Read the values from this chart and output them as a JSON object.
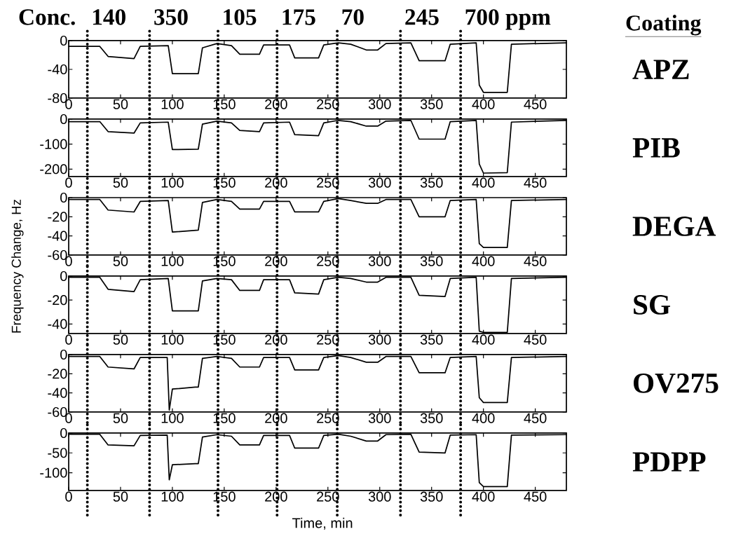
{
  "chart_data": [
    {
      "type": "line",
      "annotations": [
        "Conc.",
        "140",
        "350",
        "105",
        "175",
        "70",
        "245",
        "700 ppm",
        "Coating"
      ],
      "x": [
        0,
        30,
        38,
        63,
        69,
        96,
        100,
        125,
        129,
        143,
        157,
        165,
        184,
        188,
        213,
        218,
        241,
        246,
        260,
        272,
        287,
        298,
        306,
        330,
        338,
        363,
        368,
        393,
        396,
        400,
        423,
        427,
        480
      ],
      "series": [
        {
          "name": "APZ",
          "color": "#000000",
          "values": [
            -8,
            -8,
            -22,
            -25,
            -8,
            -7,
            -46,
            -46,
            -10,
            -4,
            -7,
            -19,
            -19,
            -6,
            -6,
            -24,
            -24,
            -6,
            -3,
            -5,
            -13,
            -13,
            -4,
            -3,
            -28,
            -28,
            -5,
            -3,
            -62,
            -72,
            -72,
            -5,
            -3
          ]
        }
      ],
      "xlim": [
        0,
        480
      ],
      "ylim": [
        -80,
        0
      ],
      "xticks": [
        0,
        50,
        100,
        150,
        200,
        250,
        300,
        350,
        400,
        450
      ],
      "yticks": [
        -80,
        -40,
        0
      ],
      "ref_lines": [
        {
          "axis": "x",
          "value": 18,
          "color": "#000000",
          "line_style": "dotted"
        },
        {
          "axis": "x",
          "value": 78,
          "color": "#000000",
          "line_style": "dotted"
        },
        {
          "axis": "x",
          "value": 144,
          "color": "#000000",
          "line_style": "dotted"
        },
        {
          "axis": "x",
          "value": 201,
          "color": "#000000",
          "line_style": "dotted"
        },
        {
          "axis": "x",
          "value": 259,
          "color": "#000000",
          "line_style": "dotted"
        },
        {
          "axis": "x",
          "value": 320,
          "color": "#000000",
          "line_style": "dotted"
        },
        {
          "axis": "x",
          "value": 378,
          "color": "#000000",
          "line_style": "dotted"
        }
      ]
    },
    {
      "type": "line",
      "x": [
        0,
        30,
        38,
        63,
        69,
        96,
        100,
        125,
        129,
        143,
        157,
        165,
        184,
        188,
        213,
        218,
        241,
        246,
        260,
        272,
        287,
        298,
        306,
        330,
        338,
        363,
        368,
        393,
        396,
        400,
        423,
        427,
        480
      ],
      "series": [
        {
          "name": "PIB",
          "color": "#000000",
          "values": [
            -10,
            -10,
            -50,
            -56,
            -15,
            -12,
            -122,
            -120,
            -20,
            -8,
            -15,
            -45,
            -50,
            -15,
            -12,
            -62,
            -66,
            -15,
            -5,
            -10,
            -28,
            -28,
            -8,
            -5,
            -80,
            -80,
            -10,
            -5,
            -180,
            -216,
            -214,
            -12,
            -5
          ]
        }
      ],
      "xlim": [
        0,
        480
      ],
      "ylim": [
        -230,
        0
      ],
      "xticks": [
        0,
        50,
        100,
        150,
        200,
        250,
        300,
        350,
        400,
        450
      ],
      "yticks": [
        -200,
        -100,
        0
      ],
      "ref_lines": [
        {
          "axis": "x",
          "value": 18,
          "color": "#000000",
          "line_style": "dotted"
        },
        {
          "axis": "x",
          "value": 78,
          "color": "#000000",
          "line_style": "dotted"
        },
        {
          "axis": "x",
          "value": 144,
          "color": "#000000",
          "line_style": "dotted"
        },
        {
          "axis": "x",
          "value": 201,
          "color": "#000000",
          "line_style": "dotted"
        },
        {
          "axis": "x",
          "value": 259,
          "color": "#000000",
          "line_style": "dotted"
        },
        {
          "axis": "x",
          "value": 320,
          "color": "#000000",
          "line_style": "dotted"
        },
        {
          "axis": "x",
          "value": 378,
          "color": "#000000",
          "line_style": "dotted"
        }
      ]
    },
    {
      "type": "line",
      "ylabel": "Frequency Change, Hz",
      "x": [
        0,
        30,
        38,
        63,
        69,
        96,
        100,
        125,
        129,
        143,
        157,
        165,
        184,
        188,
        213,
        218,
        241,
        246,
        260,
        272,
        287,
        298,
        306,
        330,
        338,
        363,
        368,
        393,
        396,
        400,
        423,
        427,
        480
      ],
      "series": [
        {
          "name": "DEGA",
          "color": "#000000",
          "values": [
            -2,
            -2,
            -13,
            -15,
            -4,
            -3,
            -36,
            -34,
            -5,
            -2,
            -4,
            -12,
            -12,
            -4,
            -4,
            -15,
            -15,
            -4,
            -1,
            -3,
            -6,
            -6,
            -2,
            -2,
            -20,
            -20,
            -3,
            -2,
            -48,
            -52,
            -52,
            -3,
            -2
          ]
        }
      ],
      "xlim": [
        0,
        480
      ],
      "ylim": [
        -60,
        0
      ],
      "xticks": [
        0,
        50,
        100,
        150,
        200,
        250,
        300,
        350,
        400,
        450
      ],
      "yticks": [
        -60,
        -40,
        -20,
        0
      ],
      "ref_lines": [
        {
          "axis": "x",
          "value": 18,
          "color": "#000000",
          "line_style": "dotted"
        },
        {
          "axis": "x",
          "value": 78,
          "color": "#000000",
          "line_style": "dotted"
        },
        {
          "axis": "x",
          "value": 144,
          "color": "#000000",
          "line_style": "dotted"
        },
        {
          "axis": "x",
          "value": 201,
          "color": "#000000",
          "line_style": "dotted"
        },
        {
          "axis": "x",
          "value": 259,
          "color": "#000000",
          "line_style": "dotted"
        },
        {
          "axis": "x",
          "value": 320,
          "color": "#000000",
          "line_style": "dotted"
        },
        {
          "axis": "x",
          "value": 378,
          "color": "#000000",
          "line_style": "dotted"
        }
      ]
    },
    {
      "type": "line",
      "x": [
        0,
        30,
        38,
        63,
        69,
        96,
        100,
        125,
        129,
        143,
        157,
        165,
        184,
        188,
        213,
        218,
        241,
        246,
        260,
        272,
        287,
        298,
        306,
        330,
        338,
        363,
        368,
        393,
        396,
        400,
        423,
        427,
        480
      ],
      "series": [
        {
          "name": "SG",
          "color": "#000000",
          "values": [
            -1,
            -1,
            -11,
            -13,
            -3,
            -2,
            -29,
            -29,
            -4,
            -2,
            -3,
            -12,
            -12,
            -3,
            -3,
            -14,
            -15,
            -3,
            -1,
            -2,
            -5,
            -5,
            -1,
            -1,
            -16,
            -17,
            -2,
            -1,
            -46,
            -47,
            -47,
            -2,
            -1
          ]
        }
      ],
      "xlim": [
        0,
        480
      ],
      "ylim": [
        -48,
        0
      ],
      "xticks": [
        0,
        50,
        100,
        150,
        200,
        250,
        300,
        350,
        400,
        450
      ],
      "yticks": [
        -40,
        -20,
        0
      ],
      "ref_lines": [
        {
          "axis": "x",
          "value": 18,
          "color": "#000000",
          "line_style": "dotted"
        },
        {
          "axis": "x",
          "value": 78,
          "color": "#000000",
          "line_style": "dotted"
        },
        {
          "axis": "x",
          "value": 144,
          "color": "#000000",
          "line_style": "dotted"
        },
        {
          "axis": "x",
          "value": 201,
          "color": "#000000",
          "line_style": "dotted"
        },
        {
          "axis": "x",
          "value": 259,
          "color": "#000000",
          "line_style": "dotted"
        },
        {
          "axis": "x",
          "value": 320,
          "color": "#000000",
          "line_style": "dotted"
        },
        {
          "axis": "x",
          "value": 378,
          "color": "#000000",
          "line_style": "dotted"
        }
      ]
    },
    {
      "type": "line",
      "x": [
        0,
        30,
        38,
        63,
        69,
        95,
        97,
        100,
        122,
        125,
        129,
        143,
        157,
        165,
        184,
        188,
        213,
        218,
        241,
        246,
        260,
        272,
        287,
        298,
        306,
        330,
        338,
        363,
        368,
        393,
        396,
        400,
        423,
        427,
        480
      ],
      "series": [
        {
          "name": "OV275",
          "color": "#000000",
          "values": [
            -2,
            -2,
            -13,
            -15,
            -3,
            -3,
            -58,
            -36,
            -34,
            -34,
            -4,
            -2,
            -4,
            -13,
            -13,
            -3,
            -3,
            -16,
            -16,
            -3,
            -1,
            -3,
            -8,
            -8,
            -2,
            -2,
            -19,
            -19,
            -3,
            -2,
            -45,
            -50,
            -50,
            -3,
            -2
          ]
        }
      ],
      "xlim": [
        0,
        480
      ],
      "ylim": [
        -60,
        0
      ],
      "xticks": [
        0,
        50,
        100,
        150,
        200,
        250,
        300,
        350,
        400,
        450
      ],
      "yticks": [
        -60,
        -40,
        -20,
        0
      ],
      "ref_lines": [
        {
          "axis": "x",
          "value": 18,
          "color": "#000000",
          "line_style": "dotted"
        },
        {
          "axis": "x",
          "value": 78,
          "color": "#000000",
          "line_style": "dotted"
        },
        {
          "axis": "x",
          "value": 144,
          "color": "#000000",
          "line_style": "dotted"
        },
        {
          "axis": "x",
          "value": 201,
          "color": "#000000",
          "line_style": "dotted"
        },
        {
          "axis": "x",
          "value": 259,
          "color": "#000000",
          "line_style": "dotted"
        },
        {
          "axis": "x",
          "value": 320,
          "color": "#000000",
          "line_style": "dotted"
        },
        {
          "axis": "x",
          "value": 378,
          "color": "#000000",
          "line_style": "dotted"
        }
      ]
    },
    {
      "type": "line",
      "xlabel": "Time, min",
      "x": [
        0,
        30,
        38,
        63,
        69,
        95,
        97,
        100,
        122,
        125,
        129,
        143,
        157,
        165,
        184,
        188,
        213,
        218,
        241,
        246,
        260,
        272,
        287,
        298,
        306,
        330,
        338,
        363,
        368,
        393,
        396,
        400,
        423,
        427,
        480
      ],
      "series": [
        {
          "name": "PDPP",
          "color": "#000000",
          "values": [
            -3,
            -3,
            -30,
            -32,
            -6,
            -5,
            -118,
            -80,
            -77,
            -77,
            -10,
            -4,
            -8,
            -30,
            -30,
            -6,
            -6,
            -38,
            -38,
            -6,
            -3,
            -8,
            -20,
            -20,
            -4,
            -3,
            -48,
            -50,
            -5,
            -4,
            -125,
            -135,
            -135,
            -5,
            -4
          ]
        }
      ],
      "xlim": [
        0,
        480
      ],
      "ylim": [
        -145,
        0
      ],
      "xticks": [
        0,
        50,
        100,
        150,
        200,
        250,
        300,
        350,
        400,
        450
      ],
      "yticks": [
        -100,
        -50,
        0
      ],
      "ref_lines": [
        {
          "axis": "x",
          "value": 18,
          "color": "#000000",
          "line_style": "dotted"
        },
        {
          "axis": "x",
          "value": 78,
          "color": "#000000",
          "line_style": "dotted"
        },
        {
          "axis": "x",
          "value": 144,
          "color": "#000000",
          "line_style": "dotted"
        },
        {
          "axis": "x",
          "value": 201,
          "color": "#000000",
          "line_style": "dotted"
        },
        {
          "axis": "x",
          "value": 259,
          "color": "#000000",
          "line_style": "dotted"
        },
        {
          "axis": "x",
          "value": 320,
          "color": "#000000",
          "line_style": "dotted"
        },
        {
          "axis": "x",
          "value": 378,
          "color": "#000000",
          "line_style": "dotted"
        }
      ]
    }
  ]
}
